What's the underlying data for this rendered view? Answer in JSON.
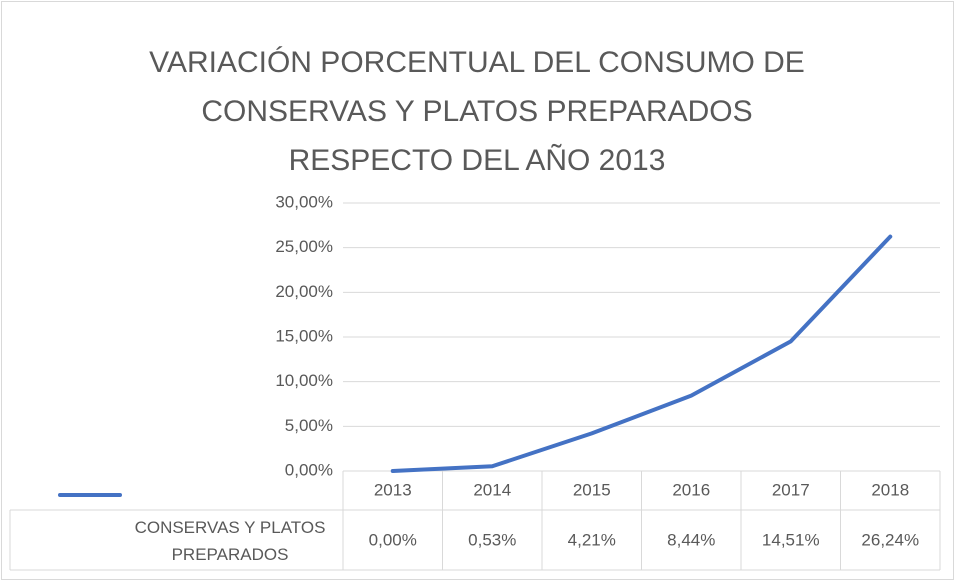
{
  "chart_data": {
    "type": "line",
    "title": "VARIACIÓN PORCENTUAL DEL CONSUMO DE CONSERVAS Y PLATOS PREPARADOS RESPECTO DEL AÑO 2013",
    "categories": [
      "2013",
      "2014",
      "2015",
      "2016",
      "2017",
      "2018"
    ],
    "series": [
      {
        "name": "CONSERVAS Y PLATOS PREPARADOS",
        "color": "#4472c4",
        "values": [
          0,
          0.53,
          4.21,
          8.44,
          14.51,
          26.24
        ],
        "value_labels": [
          "0,00%",
          "0,53%",
          "4,21%",
          "8,44%",
          "14,51%",
          "26,24%"
        ]
      }
    ],
    "ylim": [
      0,
      30
    ],
    "yticks": [
      {
        "value": 0,
        "label": "0,00%"
      },
      {
        "value": 5,
        "label": "5,00%"
      },
      {
        "value": 10,
        "label": "10,00%"
      },
      {
        "value": 15,
        "label": "15,00%"
      },
      {
        "value": 20,
        "label": "20,00%"
      },
      {
        "value": 25,
        "label": "25,00%"
      },
      {
        "value": 30,
        "label": "30,00%"
      }
    ],
    "grid": true,
    "data_table": true
  }
}
